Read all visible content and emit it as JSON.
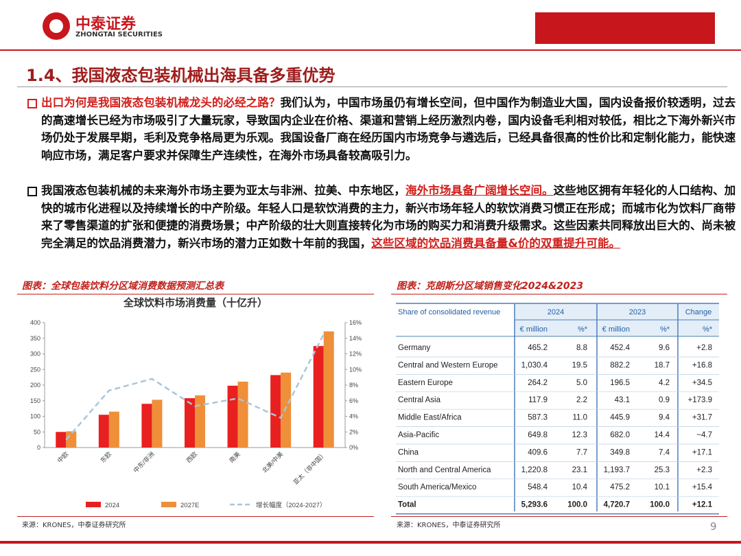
{
  "header": {
    "logo_cn": "中泰证券",
    "logo_en": "ZHONGTAI SECURITIES"
  },
  "title": "1.4、我国液态包装机械出海具备多重优势",
  "bullets": [
    {
      "segments": [
        {
          "text": "出口为何是我国液态包装机械龙头的必经之路？"
        },
        {
          "text": "我们认为，中国市场虽仍有增长空间，但中国作为制造业大国，国内设备报价较透明，过去的高速增长已经为市场吸引了大量玩家，导致国内企业在价格、渠道和营销上经历激烈内卷，国内设备毛利相对较低，相比之下海外新兴市场仍处于发展早期，毛利及竞争格局更为乐观。我国设备厂商在经历国内市场竞争与遴选后，已经具备很高的性价比和定制化能力，能快速响应市场，满足客户要求并保障生产连续性，在海外市场具备较高吸引力。"
        }
      ]
    },
    {
      "segments": [
        {
          "text": "我国液态包装机械的未来海外市场主要为亚太与非洲、拉美、中东地区，"
        },
        {
          "text": "海外市场具备广阔增长空间。"
        },
        {
          "text": "这些地区拥有年轻化的人口结构、加快的城市化进程以及持续增长的中产阶级。年轻人口是软饮消费的主力，新兴市场年轻人的软饮消费习惯正在形成；而城市化为饮料厂商带来了零售渠道的扩张和便捷的消费场景；中产阶级的壮大则直接转化为市场的购买力和消费升级需求。这些因素共同释放出巨大的、尚未被完全满足的饮品消费潜力，新兴市场的潜力正如数十年前的我国，"
        },
        {
          "text": "这些区域的饮品消费具备量&价的双重提升可能。"
        }
      ]
    }
  ],
  "left_panel": {
    "caption": "图表：全球包装饮料分区域消费数据预测汇总表",
    "source": "来源：KRONES，中泰证券研究所"
  },
  "chart_data": {
    "type": "bar",
    "title": "全球饮料市场消费量（十亿升）",
    "categories": [
      "中欧",
      "东欧",
      "中东/非洲",
      "西欧",
      "南美",
      "北美/中美",
      "亚太（非中国）"
    ],
    "series": [
      {
        "name": "2024",
        "color": "#e8201f",
        "values": [
          50,
          105,
          140,
          158,
          198,
          232,
          325
        ]
      },
      {
        "name": "2027E",
        "color": "#ef8f3a",
        "values": [
          52,
          115,
          153,
          167,
          211,
          240,
          372
        ]
      },
      {
        "name": "增长幅度（2024-2027）",
        "color": "#a9c6dc",
        "axis": "y2",
        "values": [
          1,
          7.3,
          8.8,
          5.3,
          6.3,
          3.8,
          14.5
        ]
      }
    ],
    "ylim": [
      0,
      400
    ],
    "yticks": [
      0,
      50,
      100,
      150,
      200,
      250,
      300,
      350,
      400
    ],
    "y2lim": [
      0,
      16
    ],
    "y2ticks": [
      {
        "value": 0,
        "label": "0%"
      },
      {
        "value": 2,
        "label": "2%"
      },
      {
        "value": 4,
        "label": "4%"
      },
      {
        "value": 6,
        "label": "6%"
      },
      {
        "value": 8,
        "label": "8%"
      },
      {
        "value": 10,
        "label": "10%"
      },
      {
        "value": 12,
        "label": "12%"
      },
      {
        "value": 14,
        "label": "14%"
      },
      {
        "value": 16,
        "label": "16%"
      }
    ]
  },
  "right_panel": {
    "caption": "图表：克朗斯分区域销售变化2024&2023",
    "source": "来源：KRONES，中泰证券研究所",
    "table": {
      "header": [
        "Share of consolidated revenue",
        "2024",
        "2023",
        "Change"
      ],
      "subheader": [
        "€ million",
        "%*",
        "€ million",
        "%*",
        "%*"
      ],
      "rows": [
        [
          "Germany",
          "465.2",
          "8.8",
          "452.4",
          "9.6",
          "+2.8"
        ],
        [
          "Central and Western Europe",
          "1,030.4",
          "19.5",
          "882.2",
          "18.7",
          "+16.8"
        ],
        [
          "Eastern Europe",
          "264.2",
          "5.0",
          "196.5",
          "4.2",
          "+34.5"
        ],
        [
          "Central Asia",
          "117.9",
          "2.2",
          "43.1",
          "0.9",
          "+173.9"
        ],
        [
          "Middle East/Africa",
          "587.3",
          "11.0",
          "445.9",
          "9.4",
          "+31.7"
        ],
        [
          "Asia-Pacific",
          "649.8",
          "12.3",
          "682.0",
          "14.4",
          "−4.7"
        ],
        [
          "China",
          "409.6",
          "7.7",
          "349.8",
          "7.4",
          "+17.1"
        ],
        [
          "North and Central America",
          "1,220.8",
          "23.1",
          "1,193.7",
          "25.3",
          "+2.3"
        ],
        [
          "South America/Mexico",
          "548.4",
          "10.4",
          "475.2",
          "10.1",
          "+15.4"
        ],
        [
          "Total",
          "5,293.6",
          "100.0",
          "4,720.7",
          "100.0",
          "+12.1"
        ]
      ]
    }
  },
  "page_number": "9"
}
